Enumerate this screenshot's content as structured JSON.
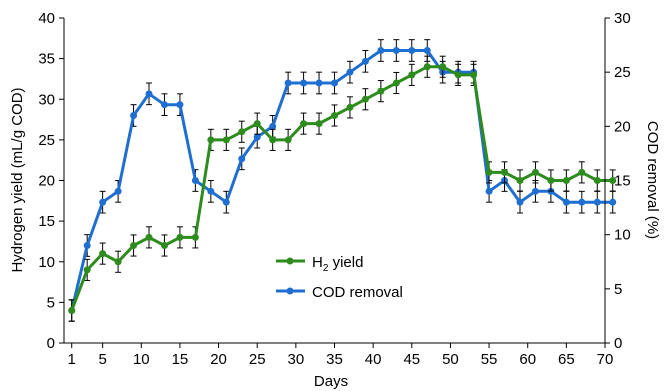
{
  "chart_data": {
    "type": "line",
    "xlabel": "Days",
    "ylabel_left": "Hydrogen yield (mL/g COD)",
    "ylabel_right": "COD removal (%)",
    "x_ticks": [
      1,
      5,
      10,
      15,
      20,
      25,
      30,
      35,
      40,
      45,
      50,
      55,
      60,
      65,
      70
    ],
    "x_range": [
      0,
      70
    ],
    "ylim_left": [
      0,
      40
    ],
    "y_ticks_left": [
      0,
      5,
      10,
      15,
      20,
      25,
      30,
      35,
      40
    ],
    "ylim_right": [
      0,
      30
    ],
    "y_ticks_right": [
      0,
      5,
      10,
      15,
      20,
      25,
      30
    ],
    "legend": {
      "position": "center",
      "h2_prefix": "H",
      "h2_subscript": "2",
      "h2_suffix": " yield",
      "cod_label": "COD removal"
    },
    "series": [
      {
        "name": "H2 yield",
        "axis": "left",
        "color": "#2e8b1e",
        "x": [
          1,
          3,
          5,
          7,
          9,
          11,
          13,
          15,
          17,
          19,
          21,
          23,
          25,
          27,
          29,
          31,
          33,
          35,
          37,
          39,
          41,
          43,
          45,
          47,
          49,
          51,
          53,
          55,
          57,
          59,
          61,
          63,
          65,
          67,
          69,
          71
        ],
        "values": [
          4,
          9,
          11,
          10,
          12,
          13,
          12,
          13,
          13,
          25,
          25,
          26,
          27,
          25,
          25,
          27,
          27,
          28,
          29,
          30,
          31,
          32,
          33,
          34,
          34,
          33,
          33,
          21,
          21,
          20,
          21,
          20,
          20,
          21,
          20,
          20
        ],
        "error": 1.3
      },
      {
        "name": "COD removal",
        "axis": "right",
        "color": "#1f6fd1",
        "x": [
          1,
          3,
          5,
          7,
          9,
          11,
          13,
          15,
          17,
          19,
          21,
          23,
          25,
          27,
          29,
          31,
          33,
          35,
          37,
          39,
          41,
          43,
          45,
          47,
          49,
          51,
          53,
          55,
          57,
          59,
          61,
          63,
          65,
          67,
          69,
          71
        ],
        "values": [
          3,
          9,
          13,
          14,
          21,
          23,
          22,
          22,
          15,
          14,
          13,
          17,
          19,
          20,
          24,
          24,
          24,
          24,
          25,
          26,
          27,
          27,
          27,
          27,
          25,
          25,
          25,
          14,
          15,
          13,
          14,
          14,
          13,
          13,
          13,
          13
        ],
        "error": 1.0
      }
    ]
  }
}
